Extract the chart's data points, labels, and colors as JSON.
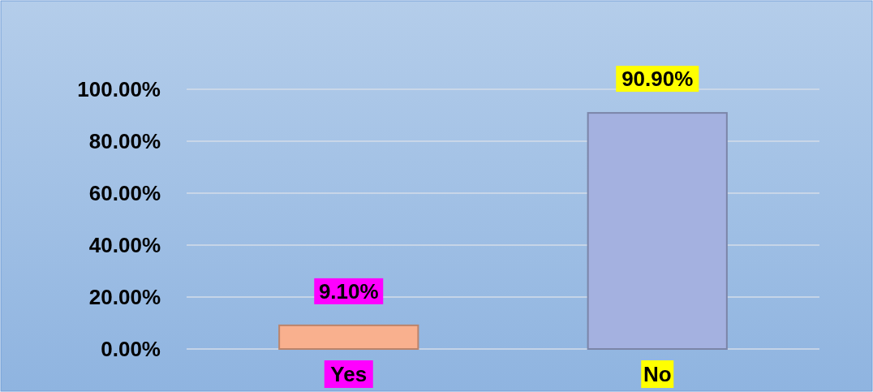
{
  "chart_data": {
    "type": "bar",
    "categories": [
      "Yes",
      "No"
    ],
    "values": [
      9.1,
      90.9
    ],
    "colors": [
      "#f9b08e",
      "#a4b1e0"
    ],
    "value_labels": [
      "9.10%",
      "90.90%"
    ],
    "ylim": [
      0,
      100
    ],
    "yticks": [
      {
        "value": 0,
        "label": "0.00%"
      },
      {
        "value": 20,
        "label": "20.00%"
      },
      {
        "value": 40,
        "label": "40.00%"
      },
      {
        "value": 60,
        "label": "60.00%"
      },
      {
        "value": 80,
        "label": "80.00%"
      },
      {
        "value": 100,
        "label": "100.00%"
      }
    ],
    "grid": true
  }
}
